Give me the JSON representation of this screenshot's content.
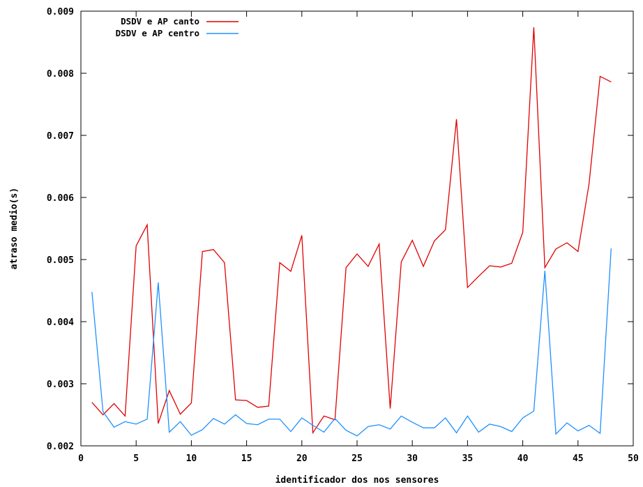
{
  "chart_data": {
    "type": "line",
    "xlabel": "identificador dos nos sensores",
    "ylabel": "atraso medio(s)",
    "xlim": [
      0,
      50
    ],
    "ylim": [
      0.002,
      0.009
    ],
    "x_ticks": [
      0,
      5,
      10,
      15,
      20,
      25,
      30,
      35,
      40,
      45,
      50
    ],
    "y_ticks": [
      0.002,
      0.003,
      0.004,
      0.005,
      0.006,
      0.007,
      0.008,
      0.009
    ],
    "x_tick_labels": [
      "0",
      "5",
      "10",
      "15",
      "20",
      "25",
      "30",
      "35",
      "40",
      "45",
      "50"
    ],
    "y_tick_labels": [
      "0.002",
      "0.003",
      "0.004",
      "0.005",
      "0.006",
      "0.007",
      "0.008",
      "0.009"
    ],
    "grid": false,
    "legend_position": "top-left",
    "x": [
      1,
      2,
      3,
      4,
      5,
      6,
      7,
      8,
      9,
      10,
      11,
      12,
      13,
      14,
      15,
      16,
      17,
      18,
      19,
      20,
      21,
      22,
      23,
      24,
      25,
      26,
      27,
      28,
      29,
      30,
      31,
      32,
      33,
      34,
      35,
      36,
      37,
      38,
      39,
      40,
      41,
      42,
      43,
      44,
      45,
      46,
      47,
      48
    ],
    "series": [
      {
        "name": "DSDV e AP canto",
        "color": "#e00000",
        "values": [
          0.0027,
          0.0025,
          0.00268,
          0.00248,
          0.00522,
          0.00556,
          0.00236,
          0.00289,
          0.00251,
          0.00269,
          0.00513,
          0.00516,
          0.00495,
          0.00274,
          0.00273,
          0.00262,
          0.00264,
          0.00495,
          0.00481,
          0.00539,
          0.00221,
          0.00248,
          0.00242,
          0.00487,
          0.00509,
          0.00489,
          0.00525,
          0.0026,
          0.00496,
          0.00531,
          0.00489,
          0.0053,
          0.00548,
          0.00726,
          0.00455,
          0.00473,
          0.0049,
          0.00488,
          0.00494,
          0.00544,
          0.00874,
          0.00487,
          0.00517,
          0.00527,
          0.00513,
          0.00622,
          0.00795,
          0.00786
        ]
      },
      {
        "name": "DSDV e AP centro",
        "color": "#1e90ff",
        "values": [
          0.00448,
          0.00255,
          0.0023,
          0.00239,
          0.00235,
          0.00243,
          0.00463,
          0.00222,
          0.00239,
          0.00217,
          0.00226,
          0.00244,
          0.00235,
          0.0025,
          0.00236,
          0.00234,
          0.00243,
          0.00243,
          0.00223,
          0.00245,
          0.00233,
          0.00222,
          0.00244,
          0.00225,
          0.00216,
          0.00231,
          0.00234,
          0.00227,
          0.00248,
          0.00238,
          0.00229,
          0.00229,
          0.00245,
          0.00221,
          0.00248,
          0.00222,
          0.00235,
          0.00231,
          0.00223,
          0.00245,
          0.00256,
          0.00482,
          0.00219,
          0.00237,
          0.00224,
          0.00233,
          0.0022,
          0.00518
        ]
      }
    ]
  }
}
